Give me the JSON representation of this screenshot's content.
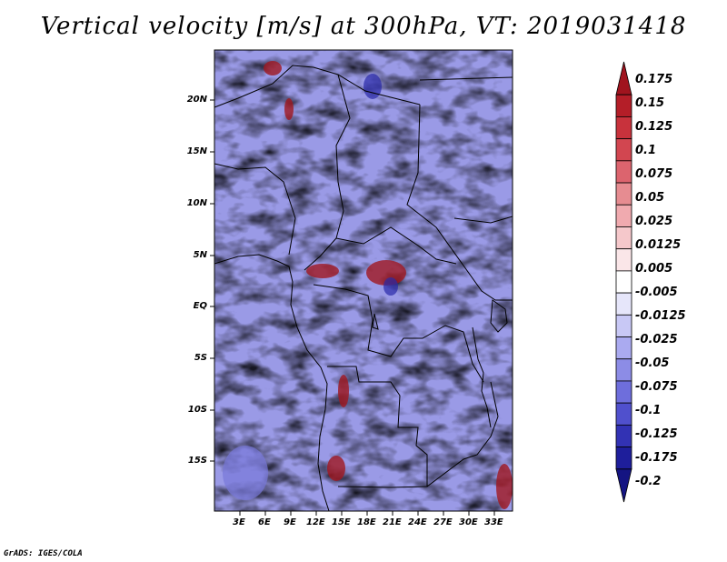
{
  "title": "Vertical velocity [m/s] at 300hPa, VT: 2019031418",
  "map": {
    "lat_labels": [
      "20N",
      "15N",
      "10N",
      "5N",
      "EQ",
      "5S",
      "10S",
      "15S"
    ],
    "lon_labels": [
      "3E",
      "6E",
      "9E",
      "12E",
      "15E",
      "18E",
      "21E",
      "24E",
      "27E",
      "30E",
      "33E"
    ]
  },
  "colorbar": {
    "labels": [
      "0.175",
      "0.15",
      "0.125",
      "0.1",
      "0.075",
      "0.05",
      "0.025",
      "0.0125",
      "0.005",
      "-0.005",
      "-0.0125",
      "-0.025",
      "-0.05",
      "-0.075",
      "-0.1",
      "-0.125",
      "-0.175",
      "-0.2"
    ],
    "colors": [
      "#a0141e",
      "#b41e28",
      "#c8323c",
      "#d24650",
      "#dc646e",
      "#e68c91",
      "#f0aaaf",
      "#f5c8cb",
      "#fae6e8",
      "#ffffff",
      "#e6e6fa",
      "#c8c8f5",
      "#aaaaf0",
      "#8c8ce6",
      "#6e6edc",
      "#5050cd",
      "#3232b4",
      "#1e1e9b",
      "#141482"
    ]
  },
  "footer": "GrADS: IGES/COLA"
}
